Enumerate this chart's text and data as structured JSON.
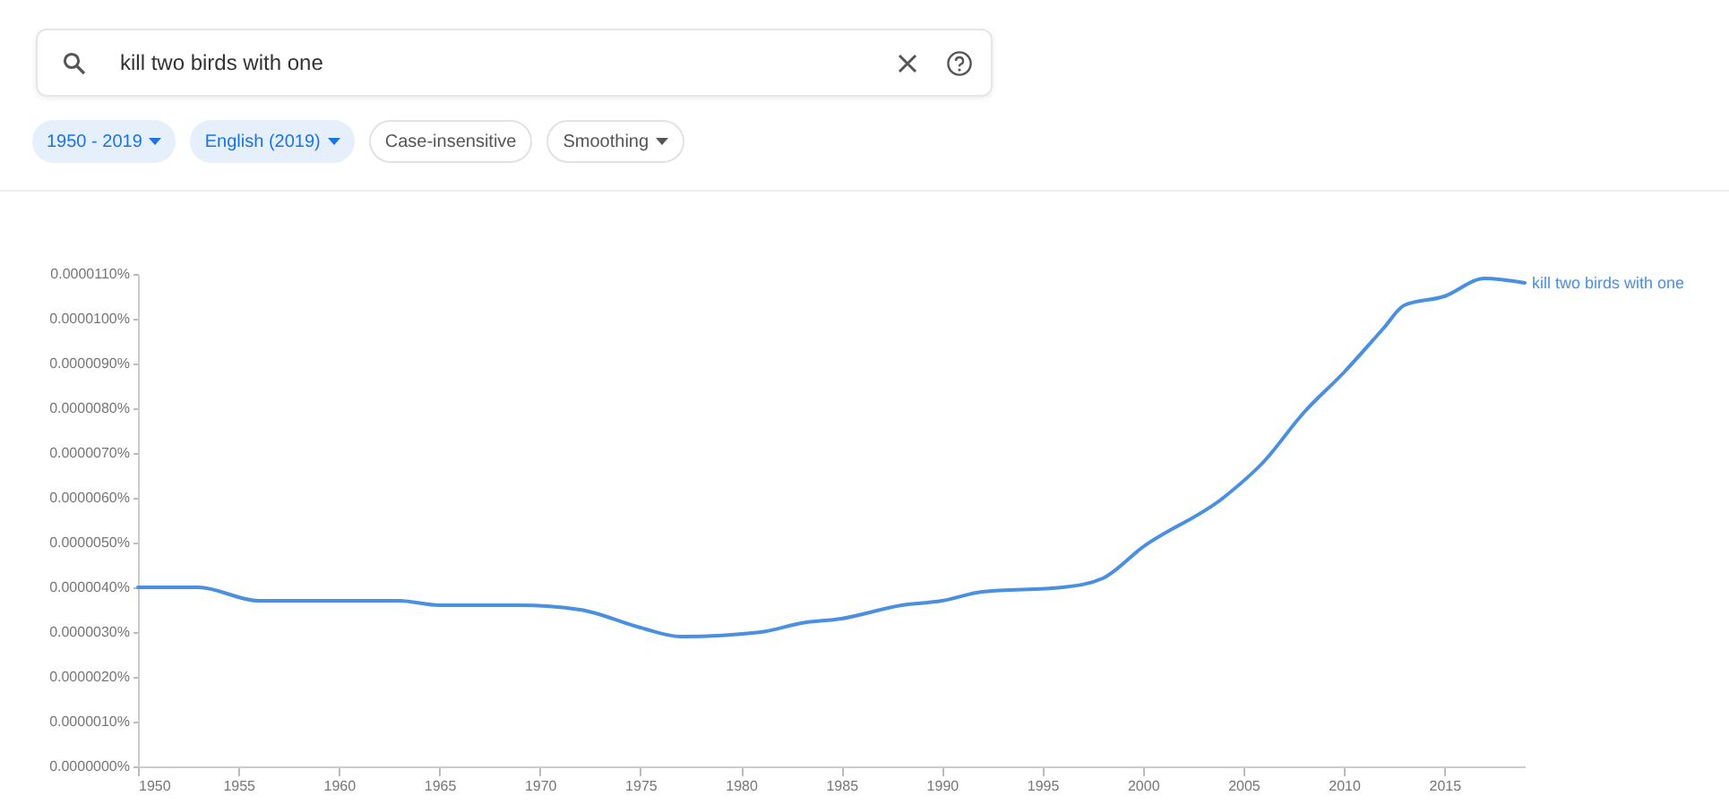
{
  "chart_data": {
    "type": "line",
    "annotations": [
      "kill two birds with one",
      "1950 - 2019",
      "English (2019)",
      "Case-insensitive",
      "Smoothing"
    ],
    "x": [
      1950,
      1953,
      1956,
      1960,
      1963,
      1965,
      1969,
      1972,
      1975,
      1977,
      1981,
      1983,
      1985,
      1988,
      1990,
      1992,
      1996,
      1998,
      2000,
      2004,
      2006,
      2008,
      2010,
      2012,
      2013,
      2015,
      2017,
      2019
    ],
    "series": [
      {
        "name": "kill two birds with one",
        "color": "#4a8fe0",
        "values": [
          4e-06,
          4e-06,
          3.7e-06,
          3.7e-06,
          3.7e-06,
          3.6e-06,
          3.6e-06,
          3.5e-06,
          3.1e-06,
          2.9e-06,
          3e-06,
          3.2e-06,
          3.3e-06,
          3.6e-06,
          3.7e-06,
          3.9e-06,
          4e-06,
          4.2e-06,
          4.9e-06,
          6e-06,
          6.8e-06,
          7.9e-06,
          8.8e-06,
          9.8e-06,
          1.03e-05,
          1.05e-05,
          1.09e-05,
          1.08e-05
        ]
      }
    ],
    "xlim": [
      1950,
      2019
    ],
    "xticks": [
      1950,
      1955,
      1960,
      1965,
      1970,
      1975,
      1980,
      1985,
      1990,
      1995,
      2000,
      2005,
      2010,
      2015
    ],
    "ylim": [
      0,
      1.1e-05
    ],
    "yticks": [
      {
        "value": 0,
        "label": "0.0000000%"
      },
      {
        "value": 1e-06,
        "label": "0.0000010%"
      },
      {
        "value": 2e-06,
        "label": "0.0000020%"
      },
      {
        "value": 3e-06,
        "label": "0.0000030%"
      },
      {
        "value": 4e-06,
        "label": "0.0000040%"
      },
      {
        "value": 5e-06,
        "label": "0.0000050%"
      },
      {
        "value": 6e-06,
        "label": "0.0000060%"
      },
      {
        "value": 7e-06,
        "label": "0.0000070%"
      },
      {
        "value": 8e-06,
        "label": "0.0000080%"
      },
      {
        "value": 9e-06,
        "label": "0.0000090%"
      },
      {
        "value": 1e-05,
        "label": "0.0000100%"
      },
      {
        "value": 1.1e-05,
        "label": "0.0000110%"
      }
    ],
    "grid": false,
    "legend": false
  }
}
